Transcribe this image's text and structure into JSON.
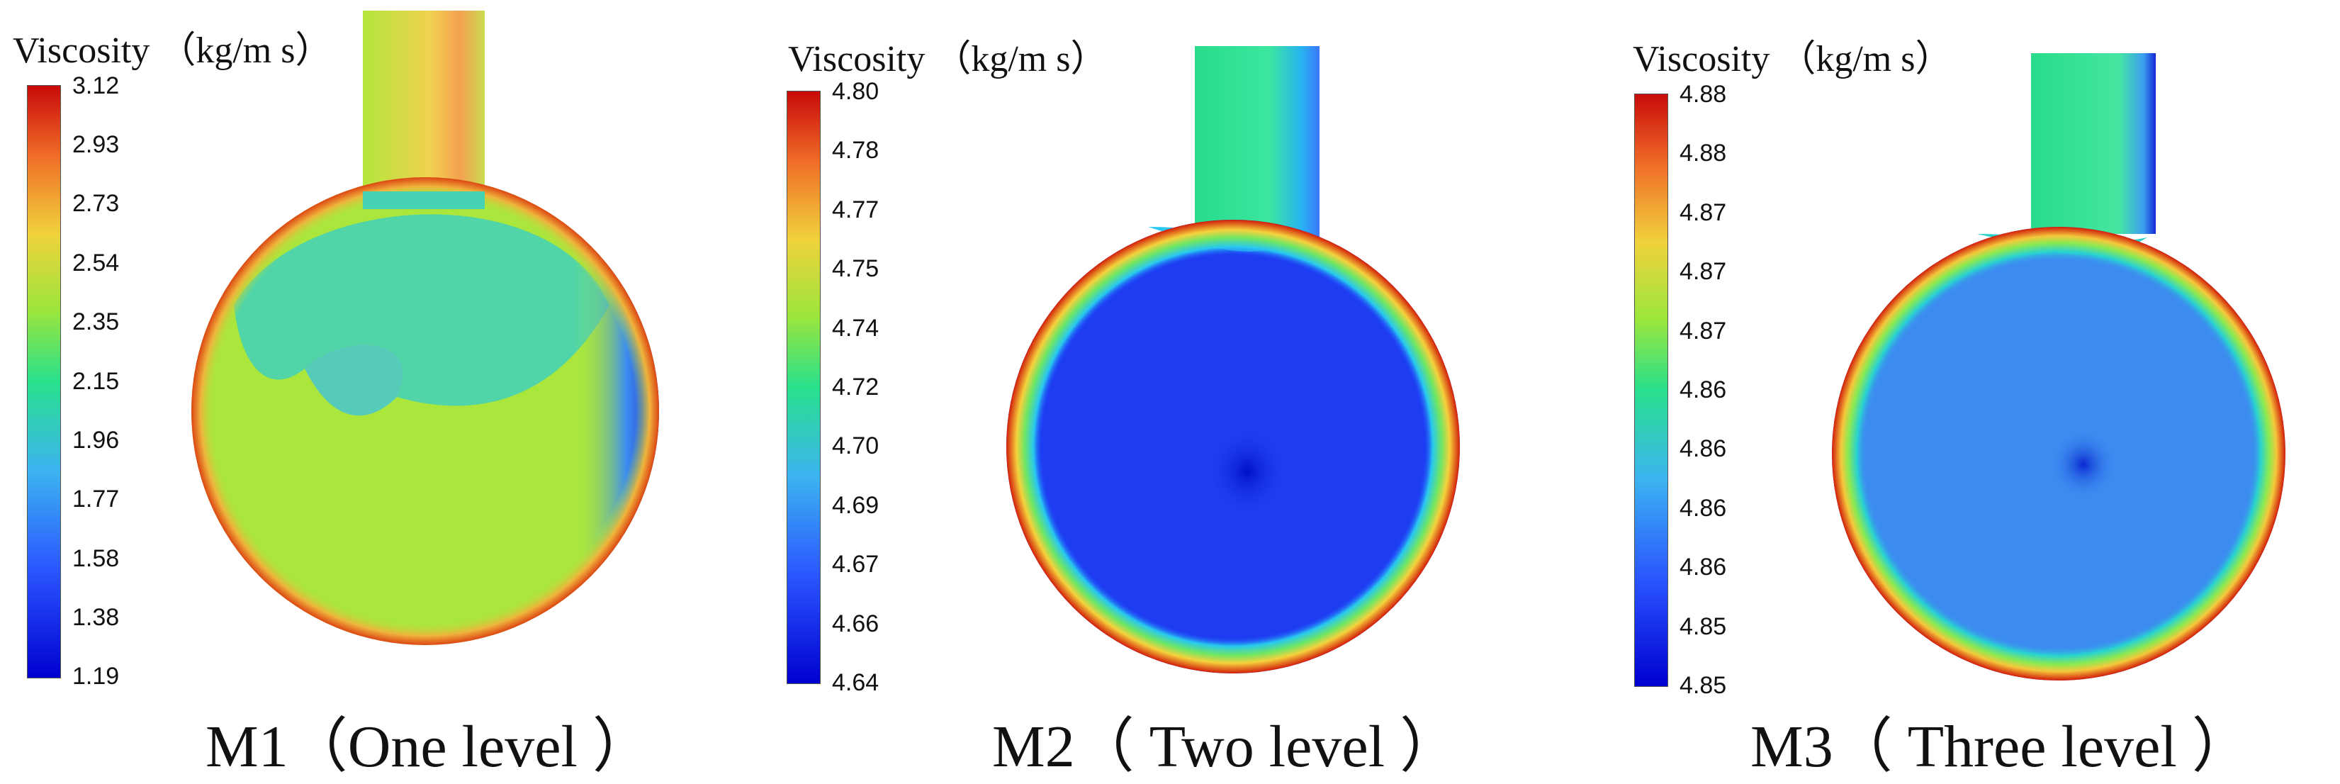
{
  "panels": [
    {
      "legend_title": "Viscosity （kg/m s）",
      "ticks": [
        "3.12",
        "2.93",
        "2.73",
        "2.54",
        "2.35",
        "2.15",
        "1.96",
        "1.77",
        "1.58",
        "1.38",
        "1.19"
      ],
      "caption": "M1（One level ）"
    },
    {
      "legend_title": "Viscosity （kg/m s）",
      "ticks": [
        "4.80",
        "4.78",
        "4.77",
        "4.75",
        "4.74",
        "4.72",
        "4.70",
        "4.69",
        "4.67",
        "4.66",
        "4.64"
      ],
      "caption": "M2（ Two level ）"
    },
    {
      "legend_title": "Viscosity （kg/m s）",
      "ticks": [
        "4.88",
        "4.88",
        "4.87",
        "4.87",
        "4.87",
        "4.86",
        "4.86",
        "4.86",
        "4.86",
        "4.85",
        "4.85"
      ],
      "caption": "M3（ Three level ）"
    }
  ],
  "colormap": [
    "#0000ff",
    "#0064ff",
    "#00c8ff",
    "#00ff96",
    "#7fff00",
    "#ffd200",
    "#ff6400",
    "#c80000"
  ]
}
